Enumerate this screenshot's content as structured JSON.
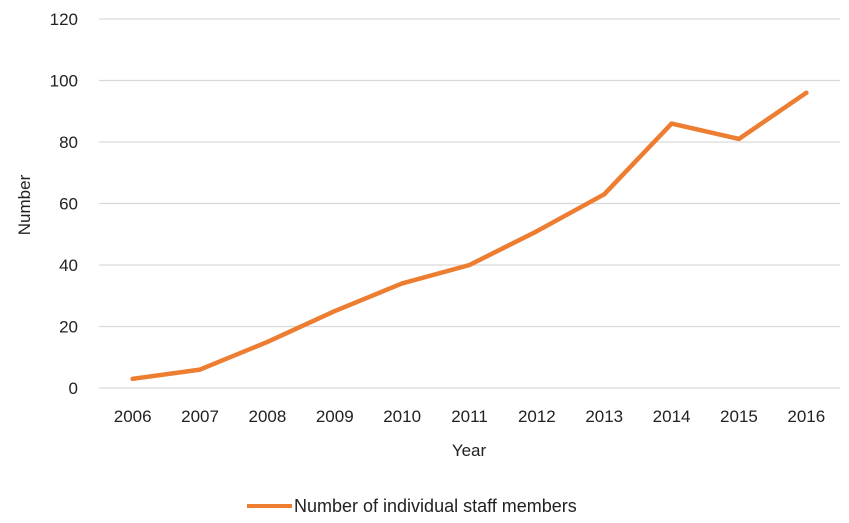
{
  "chart_data": {
    "type": "line",
    "title": "",
    "xlabel": "Year",
    "ylabel": "Number",
    "categories": [
      "2006",
      "2007",
      "2008",
      "2009",
      "2010",
      "2011",
      "2012",
      "2013",
      "2014",
      "2015",
      "2016"
    ],
    "series": [
      {
        "name": "Number of individual staff members",
        "values": [
          3,
          6,
          15,
          25,
          34,
          40,
          51,
          63,
          86,
          81,
          96
        ],
        "color": "#ED7D31"
      }
    ],
    "ylim": [
      0,
      120
    ],
    "yticks": [
      0,
      20,
      40,
      60,
      80,
      100,
      120
    ],
    "grid": "horizontal",
    "gridColor": "#D9D9D9",
    "legend_position": "bottom"
  }
}
